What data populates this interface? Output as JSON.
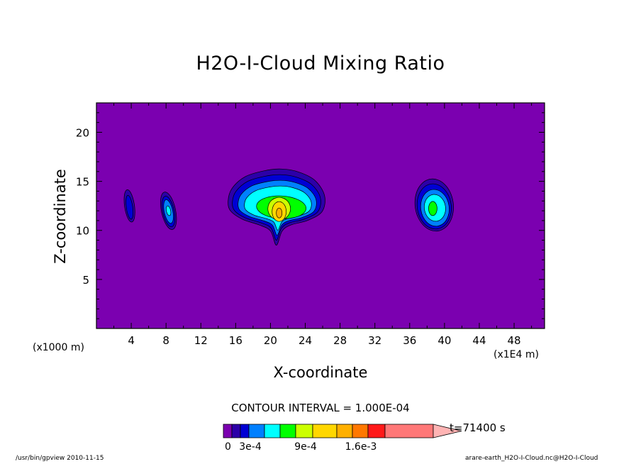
{
  "chart_data": {
    "type": "contour",
    "title": "H2O-I-Cloud Mixing Ratio",
    "xlabel": "X-coordinate",
    "ylabel": "Z-coordinate",
    "x_unit_left": "(x1000 m)",
    "x_unit_right": "(x1E4 m)",
    "xlim": [
      0,
      51.5
    ],
    "ylim": [
      0,
      23
    ],
    "xticks": [
      4,
      8,
      12,
      16,
      20,
      24,
      28,
      32,
      36,
      40,
      44,
      48
    ],
    "yticks": [
      5,
      10,
      15,
      20
    ],
    "contour_interval": "CONTOUR INTERVAL = 1.000E-04",
    "time_label": "t=71400 s",
    "colorbar": {
      "colors": [
        "#7b00b0",
        "#2c00a8",
        "#0000d4",
        "#0080ff",
        "#00ffff",
        "#00ff00",
        "#ccff00",
        "#ffd700",
        "#ffb000",
        "#ff7800",
        "#ff1a1a",
        "#ff7878",
        "#ffb4b4"
      ],
      "tick_labels": [
        "0",
        "3e-4",
        "9e-4",
        "1.6e-3"
      ]
    },
    "features": [
      {
        "name": "cloud-x4",
        "center_x": 3.8,
        "center_z": 12.5,
        "peak_level": 2
      },
      {
        "name": "cloud-x8",
        "center_x": 8.2,
        "center_z": 12.0,
        "peak_level": 4
      },
      {
        "name": "cloud-x21",
        "center_x": 21.0,
        "center_z": 12.5,
        "peak_level": 8
      },
      {
        "name": "cloud-x39",
        "center_x": 38.9,
        "center_z": 12.3,
        "peak_level": 5
      }
    ]
  },
  "footer": {
    "left": "/usr/bin/gpview   2010-11-15",
    "right": "arare-earth_H2O-I-Cloud.nc@H2O-I-Cloud"
  }
}
